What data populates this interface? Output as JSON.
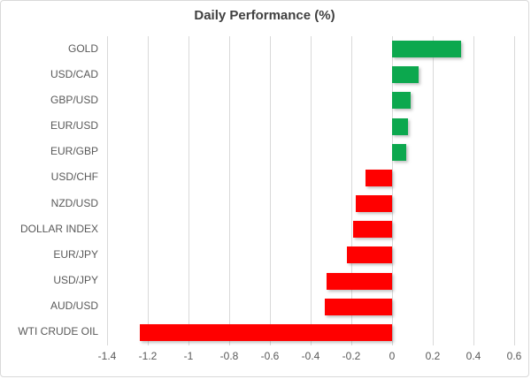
{
  "chart_data": {
    "type": "bar",
    "orientation": "horizontal",
    "title": "Daily Performance (%)",
    "categories": [
      "GOLD",
      "USD/CAD",
      "GBP/USD",
      "EUR/USD",
      "EUR/GBP",
      "USD/CHF",
      "NZD/USD",
      "DOLLAR INDEX",
      "EUR/JPY",
      "USD/JPY",
      "AUD/USD",
      "WTI CRUDE OIL"
    ],
    "values": [
      0.34,
      0.13,
      0.09,
      0.08,
      0.07,
      -0.13,
      -0.18,
      -0.19,
      -0.22,
      -0.32,
      -0.33,
      -1.24
    ],
    "xlim": [
      -1.4,
      0.6
    ],
    "xticks": [
      "-1.4",
      "-1.2",
      "-1",
      "-0.8",
      "-0.6",
      "-0.4",
      "-0.2",
      "0",
      "0.2",
      "0.4",
      "0.6"
    ],
    "grid": true,
    "legend": false,
    "colors": {
      "positive": "#0ca84e",
      "negative": "#ff0000",
      "grid": "#d9d9d9",
      "labels": "#595959",
      "title": "#404040",
      "border": "#d9d9d9",
      "background": "#ffffff"
    }
  }
}
